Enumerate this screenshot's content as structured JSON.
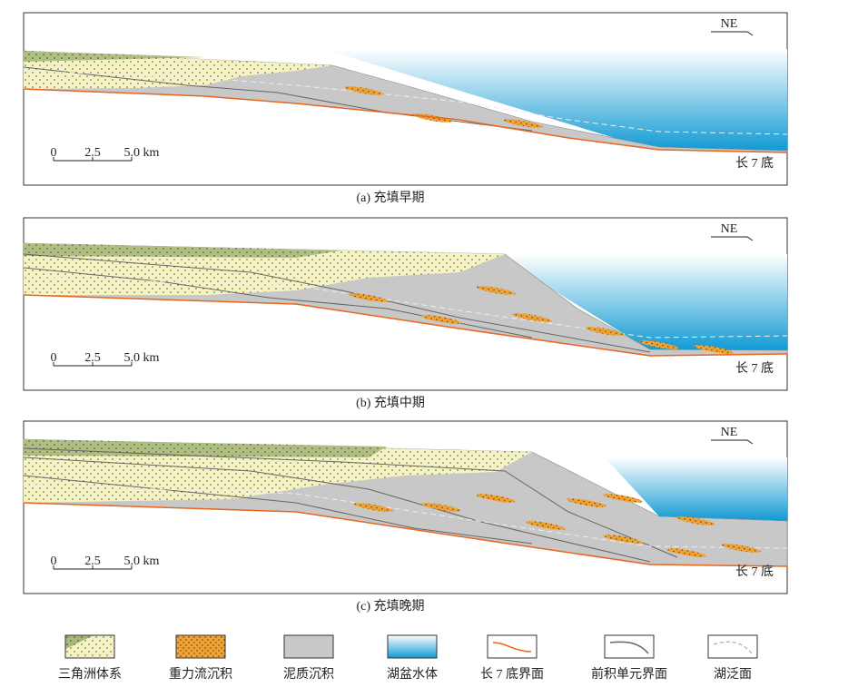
{
  "panels": [
    {
      "caption": "(a) 充填早期",
      "direction": "NE",
      "scale": [
        "0",
        "2.5",
        "5.0 km"
      ],
      "base_label": "长 7 底"
    },
    {
      "caption": "(b) 充填中期",
      "direction": "NE",
      "scale": [
        "0",
        "2.5",
        "5.0 km"
      ],
      "base_label": "长 7 底"
    },
    {
      "caption": "(c) 充填晚期",
      "direction": "NE",
      "scale": [
        "0",
        "2.5",
        "5.0 km"
      ],
      "base_label": "长 7 底"
    }
  ],
  "legend": [
    {
      "label": "三角洲体系"
    },
    {
      "label": "重力流沉积"
    },
    {
      "label": "泥质沉积"
    },
    {
      "label": "湖盆水体"
    },
    {
      "label": "长 7 底界面"
    },
    {
      "label": "前积单元界面"
    },
    {
      "label": "湖泛面"
    }
  ]
}
